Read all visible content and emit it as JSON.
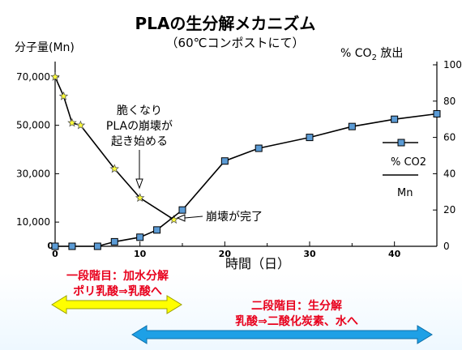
{
  "chart_data": {
    "type": "line",
    "title": "PLAの生分解メカニズム",
    "subtitle": "（60℃コンポストにて）",
    "xlabel": "時間（日）",
    "ylabel_left": "分子量(Mn)",
    "ylabel_right": "% CO",
    "ylabel_right_sub": "2",
    "ylabel_right_suffix": " 放出",
    "xlim": [
      0,
      45
    ],
    "ylim_left": [
      0,
      75000
    ],
    "ylim_right": [
      0,
      100
    ],
    "x_ticks": [
      0,
      10,
      20,
      30,
      40
    ],
    "x_tick_labels": [
      "0",
      "10",
      "20",
      "30",
      "40"
    ],
    "y_left_ticks": [
      10000,
      30000,
      50000,
      70000
    ],
    "y_left_tick_labels": [
      "10,000",
      "30,000",
      "50,000",
      "70,000"
    ],
    "y_left_zero_label": "0",
    "y_right_ticks": [
      0,
      20,
      40,
      60,
      80,
      100
    ],
    "y_right_tick_labels": [
      "0",
      "20",
      "40",
      "60",
      "80",
      "100"
    ],
    "grid": false,
    "legend": {
      "position": "right",
      "entries": [
        {
          "label": "% CO2",
          "marker": "square",
          "color": "#5b9bd5"
        },
        {
          "label": "Mn",
          "marker": "none",
          "color": "#000000"
        }
      ]
    },
    "series": [
      {
        "name": "Mn",
        "axis": "left",
        "marker": "star",
        "color": "#ffff3a",
        "points": [
          [
            0,
            70000
          ],
          [
            1,
            62000
          ],
          [
            2,
            51000
          ],
          [
            3,
            50000
          ],
          [
            7,
            32000
          ],
          [
            10,
            20000
          ],
          [
            14,
            11000
          ]
        ]
      },
      {
        "name": "% CO2",
        "axis": "right",
        "marker": "square",
        "color": "#5b9bd5",
        "points": [
          [
            0,
            0
          ],
          [
            2,
            0
          ],
          [
            5,
            0
          ],
          [
            7,
            2.5
          ],
          [
            10,
            5
          ],
          [
            12,
            9
          ],
          [
            15,
            20
          ],
          [
            20,
            47
          ],
          [
            24,
            54
          ],
          [
            30,
            60
          ],
          [
            35,
            66
          ],
          [
            40,
            70
          ],
          [
            45,
            73
          ]
        ]
      }
    ],
    "annotations": [
      {
        "text_lines": [
          "脆くなり",
          "PLAの崩壊が",
          "起き始める"
        ],
        "target": [
          10,
          20000
        ]
      },
      {
        "text_lines": [
          "崩壊が完了"
        ],
        "target": [
          14,
          11000
        ]
      }
    ]
  },
  "stages": {
    "stage1": {
      "line1": "一段階目：加水分解",
      "line2": "ポリ乳酸⇒乳酸へ",
      "arrow_color": "#ffff00"
    },
    "stage2": {
      "line1": "二段階目：生分解",
      "line2": "乳酸⇒二酸化炭素、水へ",
      "arrow_color": "#1ea0e6"
    }
  }
}
